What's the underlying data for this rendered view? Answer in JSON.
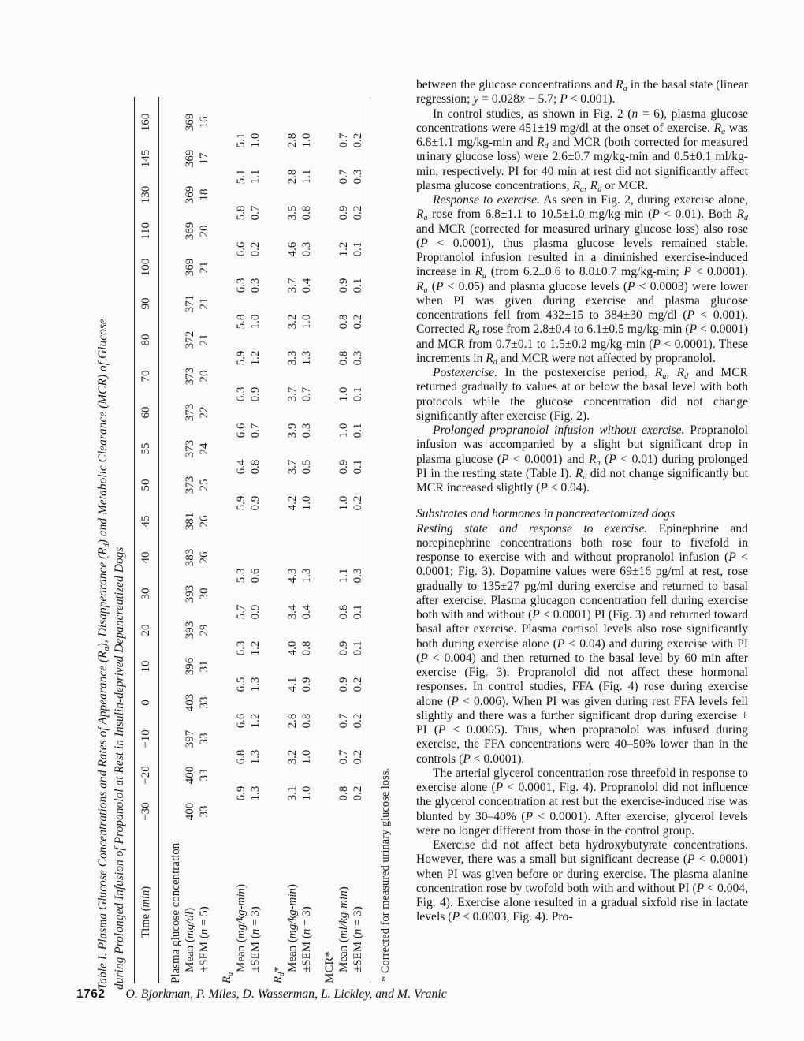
{
  "table": {
    "title_line1": "Table I. Plasma Glucose Concentrations and Rates of Appearance (R{a}), Disappearance (R{d}) and Metabolic Clearance (MCR) of Glucose",
    "title_line2": "during Prolonged Infusion of Propanolol at Rest in Insulin-deprived Depancreatized Dogs",
    "header_label": "Time (*min*)",
    "times": [
      "−30",
      "−20",
      "−10",
      "0",
      "10",
      "20",
      "30",
      "40",
      "45",
      "50",
      "55",
      "60",
      "70",
      "80",
      "90",
      "100",
      "110",
      "130",
      "145",
      "160"
    ],
    "sections": [
      {
        "label": "Plasma glucose concentration",
        "offset": false,
        "rows": [
          {
            "label": "Mean (*mg/dl*)",
            "values": [
              "400",
              "400",
              "397",
              "403",
              "396",
              "393",
              "393",
              "383",
              "381",
              "373",
              "373",
              "373",
              "373",
              "372",
              "371",
              "369",
              "369",
              "369",
              "369",
              "369"
            ]
          },
          {
            "label": "±SEM (*n* = 5)",
            "values": [
              "33",
              "33",
              "33",
              "33",
              "31",
              "29",
              "30",
              "26",
              "26",
              "25",
              "24",
              "22",
              "20",
              "21",
              "21",
              "21",
              "20",
              "18",
              "17",
              "16"
            ]
          }
        ]
      },
      {
        "label": "*R*{a}",
        "offset": true,
        "rows": [
          {
            "label": "Mean (*mg/kg-min*)",
            "values": [
              "",
              "6.9",
              "6.8",
              "6.6",
              "6.5",
              "6.3",
              "5.7",
              "5.3",
              "",
              "5.9",
              "6.4",
              "6.6",
              "6.3",
              "5.9",
              "5.8",
              "6.3",
              "6.6",
              "5.8",
              "5.1",
              "5.1"
            ]
          },
          {
            "label": "±SEM (*n* = 3)",
            "values": [
              "",
              "1.3",
              "1.3",
              "1.2",
              "1.3",
              "1.2",
              "0.9",
              "0.6",
              "",
              "0.9",
              "0.8",
              "0.7",
              "0.9",
              "1.2",
              "1.0",
              "0.3",
              "0.2",
              "0.7",
              "1.1",
              "1.0"
            ]
          }
        ]
      },
      {
        "label": "*R*{d}*",
        "offset": true,
        "rows": [
          {
            "label": "Mean (*mg/kg-min*)",
            "values": [
              "",
              "3.1",
              "3.2",
              "2.8",
              "4.1",
              "4.0",
              "3.4",
              "4.3",
              "",
              "4.2",
              "3.7",
              "3.9",
              "3.7",
              "3.3",
              "3.2",
              "3.7",
              "4.6",
              "3.5",
              "2.8",
              "2.8"
            ]
          },
          {
            "label": "±SEM (*n* = 3)",
            "values": [
              "",
              "1.0",
              "1.0",
              "0.8",
              "0.9",
              "0.8",
              "0.4",
              "1.3",
              "",
              "1.0",
              "0.5",
              "0.3",
              "0.7",
              "1.3",
              "1.0",
              "0.4",
              "0.3",
              "0.8",
              "1.1",
              "1.0"
            ]
          }
        ]
      },
      {
        "label": "MCR*",
        "offset": true,
        "rows": [
          {
            "label": "Mean (*ml/kg-min*)",
            "values": [
              "",
              "0.8",
              "0.7",
              "0.7",
              "0.9",
              "0.9",
              "0.8",
              "1.1",
              "",
              "1.0",
              "0.9",
              "1.0",
              "1.0",
              "0.8",
              "0.8",
              "0.9",
              "1.2",
              "0.9",
              "0.7",
              "0.7"
            ]
          },
          {
            "label": "±SEM (*n* = 3)",
            "values": [
              "",
              "0.2",
              "0.2",
              "0.2",
              "0.2",
              "0.1",
              "0.1",
              "0.3",
              "",
              "0.2",
              "0.1",
              "0.1",
              "0.1",
              "0.3",
              "0.2",
              "0.1",
              "0.1",
              "0.2",
              "0.3",
              "0.2"
            ]
          }
        ]
      }
    ],
    "footnote": "* Corrected for measured urinary glucose loss."
  },
  "article": {
    "paragraphs": [
      {
        "type": "plain",
        "text": "between the glucose concentrations and *R*{a} in the basal state (linear regression; *y* = 0.028*x* − 5.7; *P* < 0.001)."
      },
      {
        "type": "indent",
        "text": "In control studies, as shown in Fig. 2 (*n* = 6), plasma glucose concentrations were 451±19 mg/dl at the onset of exercise. *R*{a} was 6.8±1.1 mg/kg-min and *R*{d} and MCR (both corrected for measured urinary glucose loss) were 2.6±0.7 mg/kg-min and 0.5±0.1 ml/kg-min, respectively. PI for 40 min at rest did not significantly affect plasma glucose concentrations, *R*{a}, *R*{d} or MCR."
      },
      {
        "type": "indent",
        "text": "*Response to exercise.* As seen in Fig. 2, during exercise alone, *R*{a} rose from 6.8±1.1 to 10.5±1.0 mg/kg-min (*P* < 0.01). Both *R*{d} and MCR (corrected for measured urinary glucose loss) also rose (*P* < 0.0001), thus plasma glucose levels remained stable. Propranolol infusion resulted in a diminished exercise-induced increase in *R*{a} (from 6.2±0.6 to 8.0±0.7 mg/kg-min; *P* < 0.0001). *R*{a} (*P* < 0.05) and plasma glucose levels (*P* < 0.0003) were lower when PI was given during exercise and plasma glucose concentrations fell from 432±15 to 384±30 mg/dl (*P* < 0.001). Corrected *R*{d} rose from 2.8±0.4 to 6.1±0.5 mg/kg-min (*P* < 0.0001) and MCR from 0.7±0.1 to 1.5±0.2 mg/kg-min (*P* < 0.0001). These increments in *R*{d} and MCR were not affected by propranolol."
      },
      {
        "type": "indent",
        "text": "*Postexercise.* In the postexercise period, *R*{a}, *R*{d} and MCR returned gradually to values at or below the basal level with both protocols while the glucose concentration did not change significantly after exercise (Fig. 2)."
      },
      {
        "type": "indent",
        "text": "*Prolonged propranolol infusion without exercise.* Propranolol infusion was accompanied by a slight but significant drop in plasma glucose (*P* < 0.0001) and *R*{a} (*P* < 0.01) during prolonged PI in the resting state (Table I). *R*{d} did not change significantly but MCR increased slightly (*P* < 0.04)."
      },
      {
        "type": "heading",
        "text": "Substrates and hormones in pancreatectomized dogs"
      },
      {
        "type": "plain",
        "text": "*Resting state and response to exercise.* Epinephrine and norepinephrine concentrations both rose four to fivefold in response to exercise with and without propranolol infusion (*P* < 0.0001; Fig. 3). Dopamine values were 69±16 pg/ml at rest, rose gradually to 135±27 pg/ml during exercise and returned to basal after exercise. Plasma glucagon concentration fell during exercise both with and without (*P* < 0.0001) PI (Fig. 3) and returned toward basal after exercise. Plasma cortisol levels also rose significantly both during exercise alone (*P* < 0.04) and during exercise with PI (*P* < 0.004) and then returned to the basal level by 60 min after exercise (Fig. 3). Propranolol did not affect these hormonal responses. In control studies, FFA (Fig. 4) rose during exercise alone (*P* < 0.006). When PI was given during rest FFA levels fell slightly and there was a further significant drop during exercise + PI (*P* < 0.0005). Thus, when propranolol was infused during exercise, the FFA concentrations were 40–50% lower than in the controls (*P* < 0.0001)."
      },
      {
        "type": "indent",
        "text": "The arterial glycerol concentration rose threefold in response to exercise alone (*P* < 0.0001, Fig. 4). Propranolol did not influence the glycerol concentration at rest but the exercise-induced rise was blunted by 30–40% (*P* < 0.0001). After exercise, glycerol levels were no longer different from those in the control group."
      },
      {
        "type": "indent",
        "text": "Exercise did not affect beta hydroxybutyrate concentrations. However, there was a small but significant decrease (*P* < 0.0001) when PI was given before or during exercise. The plasma alanine concentration rose by twofold both with and without PI (*P* < 0.004, Fig. 4). Exercise alone resulted in a gradual sixfold rise in lactate levels (*P* < 0.0003, Fig. 4). Pro-"
      }
    ]
  },
  "footer": {
    "page_number": "1762",
    "authors": "O. Bjorkman, P. Miles, D. Wasserman, L. Lickley, and M. Vranic"
  }
}
